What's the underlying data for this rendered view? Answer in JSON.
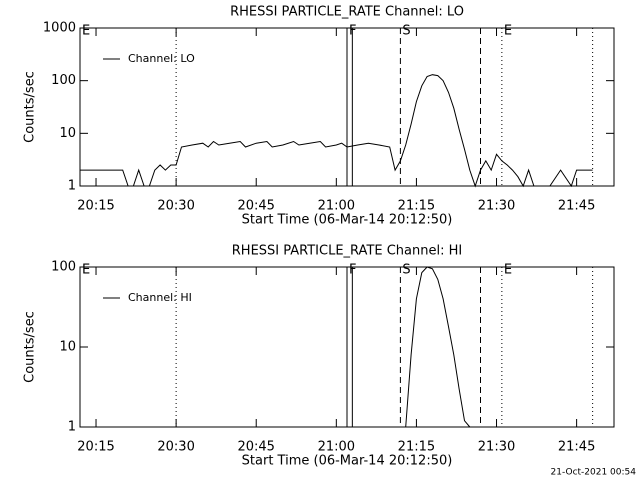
{
  "chart_data": [
    {
      "type": "line",
      "title": "RHESSI PARTICLE_RATE Channel: LO",
      "xlabel": "Start Time (06-Mar-14 20:12:50)",
      "ylabel": "Counts/sec",
      "log_y": true,
      "legend": "upper left",
      "xlim": [
        "20:12",
        "21:52"
      ],
      "xticks": [
        "20:15",
        "20:30",
        "20:45",
        "21:00",
        "21:15",
        "21:30",
        "21:45"
      ],
      "ylim": [
        1,
        1000
      ],
      "yticks": [
        1,
        10,
        100,
        1000
      ],
      "x": [
        "20:12",
        "20:15",
        "20:20",
        "20:21",
        "20:22",
        "20:23",
        "20:24",
        "20:25",
        "20:26",
        "20:27",
        "20:28",
        "20:29",
        "20:30",
        "20:31",
        "20:33",
        "20:35",
        "20:36",
        "20:37",
        "20:38",
        "20:40",
        "20:42",
        "20:43",
        "20:45",
        "20:47",
        "20:48",
        "20:50",
        "20:52",
        "20:53",
        "20:55",
        "20:57",
        "20:58",
        "21:00",
        "21:01",
        "21:02",
        "21:04",
        "21:06",
        "21:08",
        "21:10",
        "21:11",
        "21:12",
        "21:13",
        "21:14",
        "21:15",
        "21:16",
        "21:17",
        "21:18",
        "21:19",
        "21:20",
        "21:21",
        "21:22",
        "21:23",
        "21:24",
        "21:25",
        "21:26",
        "21:27",
        "21:28",
        "21:29",
        "21:30",
        "21:31",
        "21:32",
        "21:33",
        "21:34",
        "21:35",
        "21:36",
        "21:37",
        "21:38",
        "21:40",
        "21:42",
        "21:44",
        "21:45",
        "21:48"
      ],
      "series": [
        {
          "name": "Channel: LO",
          "color": "#000000",
          "values": [
            2,
            2,
            2,
            1,
            1,
            2,
            1,
            1,
            2,
            2.5,
            2,
            2.5,
            2.5,
            5.5,
            6,
            6.5,
            5.5,
            7,
            6,
            6.5,
            7,
            5.5,
            6.5,
            7,
            5.5,
            6,
            7,
            6,
            6.5,
            7,
            5.5,
            6,
            6.5,
            5.5,
            6,
            6.5,
            6,
            5.5,
            2,
            3,
            6,
            15,
            40,
            80,
            120,
            130,
            125,
            100,
            60,
            30,
            12,
            5,
            2,
            1,
            2,
            3,
            2,
            4,
            3,
            2.5,
            2,
            1.5,
            1,
            2,
            1,
            1,
            1,
            2,
            1,
            2,
            2
          ]
        }
      ],
      "markers": [
        {
          "x": "20:12",
          "label": "E"
        },
        {
          "x": "20:30",
          "style": "dotted"
        },
        {
          "x": "21:02",
          "style": "solid",
          "label": "F"
        },
        {
          "x": "21:03",
          "style": "solid"
        },
        {
          "x": "21:12",
          "style": "dashed",
          "label": "S"
        },
        {
          "x": "21:27",
          "style": "dashed"
        },
        {
          "x": "21:31",
          "style": "dotted",
          "label": "E"
        },
        {
          "x": "21:48",
          "style": "dotted"
        }
      ]
    },
    {
      "type": "line",
      "title": "RHESSI PARTICLE_RATE Channel: HI",
      "xlabel": "Start Time (06-Mar-14 20:12:50)",
      "ylabel": "Counts/sec",
      "log_y": true,
      "legend": "upper left",
      "xlim": [
        "20:12",
        "21:52"
      ],
      "xticks": [
        "20:15",
        "20:30",
        "20:45",
        "21:00",
        "21:15",
        "21:30",
        "21:45"
      ],
      "ylim": [
        1,
        100
      ],
      "yticks": [
        1,
        10,
        100
      ],
      "x": [
        "21:13",
        "21:14",
        "21:15",
        "21:16",
        "21:17",
        "21:18",
        "21:19",
        "21:20",
        "21:21",
        "21:22",
        "21:23",
        "21:24",
        "21:25"
      ],
      "series": [
        {
          "name": "Channel: HI",
          "color": "#000000",
          "values": [
            1,
            8,
            40,
            85,
            100,
            95,
            70,
            40,
            18,
            8,
            3,
            1.2,
            1
          ]
        }
      ],
      "markers": [
        {
          "x": "20:12",
          "label": "E"
        },
        {
          "x": "20:30",
          "style": "dotted"
        },
        {
          "x": "21:02",
          "style": "solid",
          "label": "F"
        },
        {
          "x": "21:03",
          "style": "solid"
        },
        {
          "x": "21:12",
          "style": "dashed",
          "label": "S"
        },
        {
          "x": "21:27",
          "style": "dashed"
        },
        {
          "x": "21:31",
          "style": "dotted",
          "label": "E"
        },
        {
          "x": "21:48",
          "style": "dotted"
        }
      ]
    }
  ],
  "footer": "21-Oct-2021 00:54"
}
